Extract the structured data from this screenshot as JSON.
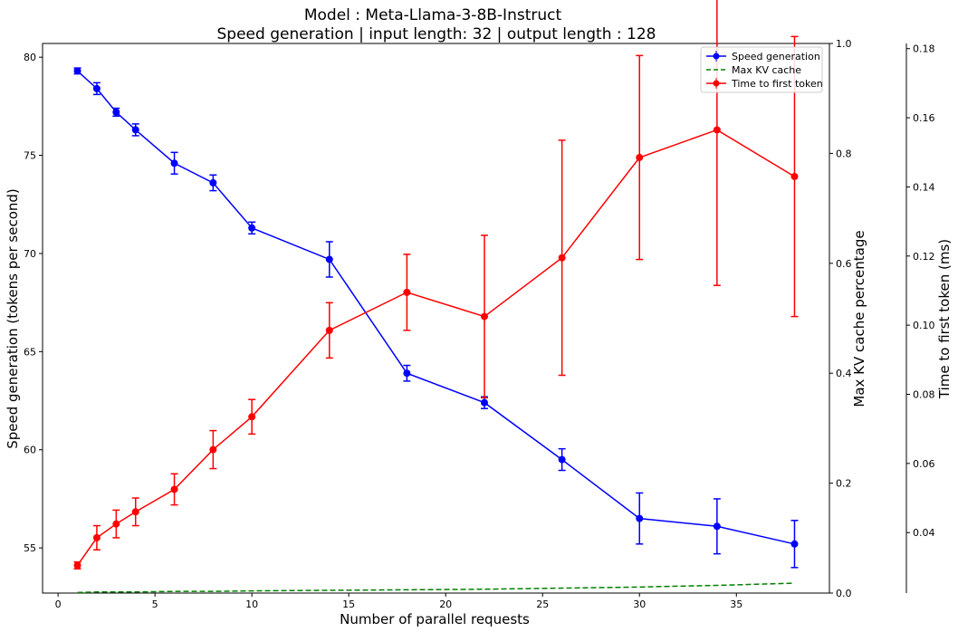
{
  "chart_data": {
    "type": "line",
    "title": "Model : Meta-Llama-3-8B-Instruct",
    "subtitle": "Speed generation | input length: 32 | output length : 128",
    "xlabel": "Number of parallel requests",
    "ylabel": "Speed generation (tokens per second)",
    "y2label": "Max KV cache percentage",
    "y3label": "Time to first token (ms)",
    "xlim": [
      -0.8,
      39.8
    ],
    "ylim": [
      52.7,
      80.7
    ],
    "y2lim": [
      0.0,
      1.0
    ],
    "y3lim": [
      0.0225,
      0.1815
    ],
    "x_ticks": [
      0,
      5,
      10,
      15,
      20,
      25,
      30,
      35
    ],
    "y_ticks": [
      55,
      60,
      65,
      70,
      75,
      80
    ],
    "y2_ticks": [
      0.0,
      0.2,
      0.4,
      0.6,
      0.8,
      1.0
    ],
    "y3_ticks": [
      0.04,
      0.06,
      0.08,
      0.1,
      0.12,
      0.14,
      0.16,
      0.18
    ],
    "legend_position": "top-right",
    "legend": [
      "Speed generation",
      "Max KV cache",
      "Time to first token"
    ],
    "x": [
      1,
      2,
      3,
      4,
      6,
      8,
      10,
      14,
      18,
      22,
      26,
      30,
      34,
      38
    ],
    "series": [
      {
        "name": "Speed generation",
        "axis": "y",
        "color": "#0000ff",
        "style": "solid-marker",
        "values": [
          79.3,
          78.4,
          77.2,
          76.3,
          74.6,
          73.6,
          71.3,
          69.7,
          63.9,
          62.4,
          59.5,
          56.5,
          56.1,
          55.2
        ],
        "errors": [
          0.15,
          0.3,
          0.2,
          0.3,
          0.55,
          0.4,
          0.3,
          0.9,
          0.4,
          0.3,
          0.55,
          1.3,
          1.4,
          1.2
        ]
      },
      {
        "name": "Max KV cache",
        "axis": "y2",
        "color": "#008000",
        "style": "dashed",
        "values": [
          0.001,
          0.002,
          0.002,
          0.002,
          0.003,
          0.003,
          0.004,
          0.005,
          0.006,
          0.007,
          0.009,
          0.011,
          0.014,
          0.018
        ]
      },
      {
        "name": "Time to first token",
        "axis": "y3",
        "color": "#ff0000",
        "style": "solid-marker",
        "values": [
          0.0305,
          0.0385,
          0.0425,
          0.046,
          0.0525,
          0.064,
          0.0735,
          0.0985,
          0.1095,
          0.1025,
          0.1195,
          0.1485,
          0.1565,
          0.143
        ],
        "errors": [
          0.001,
          0.0035,
          0.004,
          0.004,
          0.0045,
          0.0055,
          0.005,
          0.008,
          0.011,
          0.0235,
          0.034,
          0.0295,
          0.045,
          0.0405
        ]
      }
    ]
  }
}
